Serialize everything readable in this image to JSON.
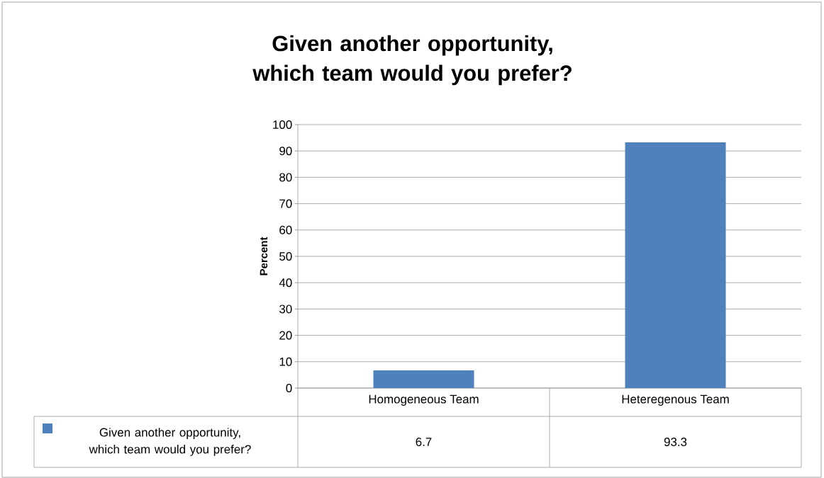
{
  "chart_data": {
    "type": "bar",
    "title": "Given another opportunity, which team would you prefer?",
    "ylabel": "Percent",
    "categories": [
      "Homogeneous Team",
      "Heteregenous Team"
    ],
    "series": [
      {
        "name": "Given another opportunity, which team would you prefer?",
        "color": "#4f81bd",
        "values": [
          6.7,
          93.3
        ]
      }
    ],
    "ylim": [
      0,
      100
    ],
    "yticks": [
      0,
      10,
      20,
      30,
      40,
      50,
      60,
      70,
      80,
      90,
      100
    ],
    "grid": "y",
    "data_labels": true,
    "legend": "bottom"
  }
}
